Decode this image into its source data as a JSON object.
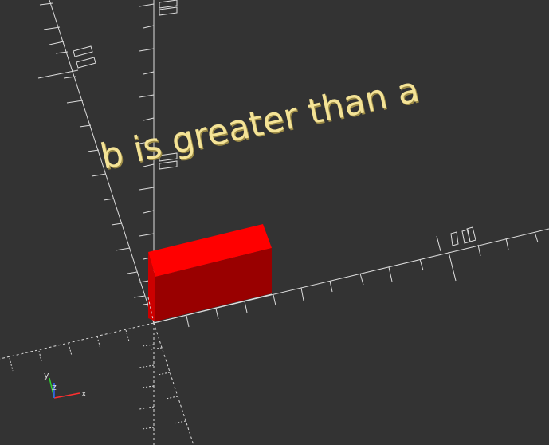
{
  "scene": {
    "background_color": "#333333",
    "axis_color": "#dcdcdc",
    "extruded_text": {
      "value": "b is greater than a",
      "front_color": "#f4e396",
      "side_color": "#9c8b47"
    },
    "cube": {
      "top_color": "#ff0000",
      "front_color": "#990000",
      "side_color": "#cc0000"
    },
    "axes_indicator": {
      "x_label": "x",
      "y_label": "y",
      "z_label": "z",
      "x_color": "#ff3030",
      "y_color": "#30d030",
      "z_color": "#3060ff"
    }
  }
}
